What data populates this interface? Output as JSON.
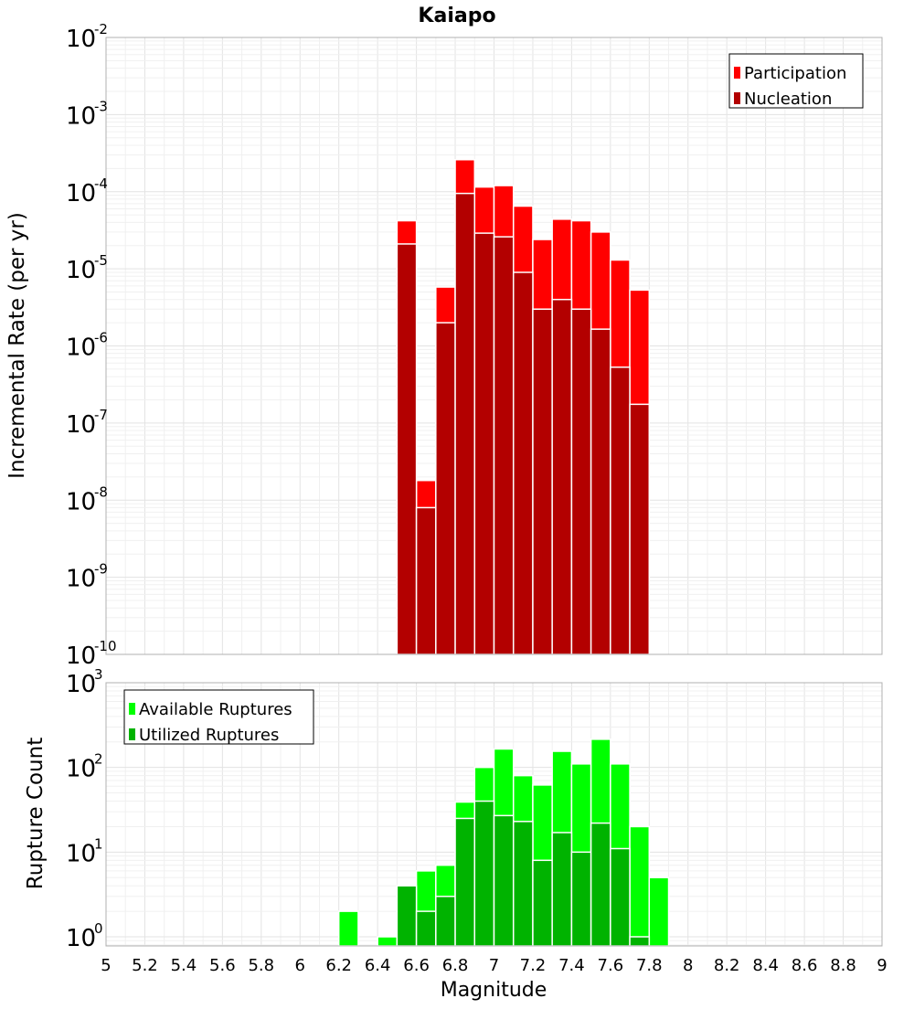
{
  "chart_data": [
    {
      "type": "bar",
      "title": "Kaiapo",
      "xlabel": "",
      "ylabel": "Incremental Rate (per yr)",
      "yscale": "log",
      "ylim": [
        1e-10,
        0.01
      ],
      "xlim": [
        5,
        9
      ],
      "bar_width": 0.1,
      "grid": true,
      "legend_position": "top-right",
      "y_ticks": [
        {
          "base": "10",
          "exp": "-2",
          "value": 0.01
        },
        {
          "base": "10",
          "exp": "-3",
          "value": 0.001
        },
        {
          "base": "10",
          "exp": "-4",
          "value": 0.0001
        },
        {
          "base": "10",
          "exp": "-5",
          "value": 1e-05
        },
        {
          "base": "10",
          "exp": "-6",
          "value": 1e-06
        },
        {
          "base": "10",
          "exp": "-7",
          "value": 1e-07
        },
        {
          "base": "10",
          "exp": "-8",
          "value": 1e-08
        },
        {
          "base": "10",
          "exp": "-9",
          "value": 1e-09
        },
        {
          "base": "10",
          "exp": "-10",
          "value": 1e-10
        }
      ],
      "x": [
        6.55,
        6.65,
        6.75,
        6.85,
        6.95,
        7.05,
        7.15,
        7.25,
        7.35,
        7.45,
        7.55,
        7.65,
        7.75
      ],
      "series": [
        {
          "name": "Participation",
          "color": "#ff0000",
          "values": [
            4.2e-05,
            1.8e-08,
            5.8e-06,
            0.00026,
            0.000115,
            0.00012,
            6.5e-05,
            2.4e-05,
            4.4e-05,
            4.2e-05,
            3e-05,
            1.3e-05,
            5.3e-06
          ]
        },
        {
          "name": "Nucleation",
          "color": "#b30000",
          "values": [
            2.1e-05,
            8e-09,
            2e-06,
            9.5e-05,
            2.9e-05,
            2.6e-05,
            9e-06,
            3e-06,
            4e-06,
            3e-06,
            1.65e-06,
            5.3e-07,
            1.75e-07
          ]
        }
      ]
    },
    {
      "type": "bar",
      "title": "",
      "xlabel": "Magnitude",
      "ylabel": "Rupture Count",
      "yscale": "log",
      "ylim": [
        0.78,
        1000
      ],
      "xlim": [
        5,
        9
      ],
      "bar_width": 0.1,
      "grid": true,
      "legend_position": "top-left",
      "x_tick_labels": [
        "5",
        "5.2",
        "5.4",
        "5.6",
        "5.8",
        "6",
        "6.2",
        "6.4",
        "6.6",
        "6.8",
        "7",
        "7.2",
        "7.4",
        "7.6",
        "7.8",
        "8",
        "8.2",
        "8.4",
        "8.6",
        "8.8",
        "9"
      ],
      "y_ticks": [
        {
          "base": "10",
          "exp": "3",
          "value": 1000
        },
        {
          "base": "10",
          "exp": "2",
          "value": 100
        },
        {
          "base": "10",
          "exp": "1",
          "value": 10
        },
        {
          "base": "10",
          "exp": "0",
          "value": 1
        }
      ],
      "x": [
        6.25,
        6.45,
        6.55,
        6.65,
        6.75,
        6.85,
        6.95,
        7.05,
        7.15,
        7.25,
        7.35,
        7.45,
        7.55,
        7.65,
        7.75,
        7.85
      ],
      "series": [
        {
          "name": "Available Ruptures",
          "color": "#00ff00",
          "values": [
            2,
            1,
            4,
            6,
            7,
            39,
            100,
            165,
            80,
            62,
            155,
            110,
            215,
            110,
            20,
            5
          ]
        },
        {
          "name": "Utilized Ruptures",
          "color": "#00b300",
          "values": [
            0,
            0,
            4,
            2,
            3,
            25,
            40,
            27,
            23,
            8,
            17,
            10,
            22,
            11,
            1,
            0
          ]
        }
      ]
    }
  ]
}
